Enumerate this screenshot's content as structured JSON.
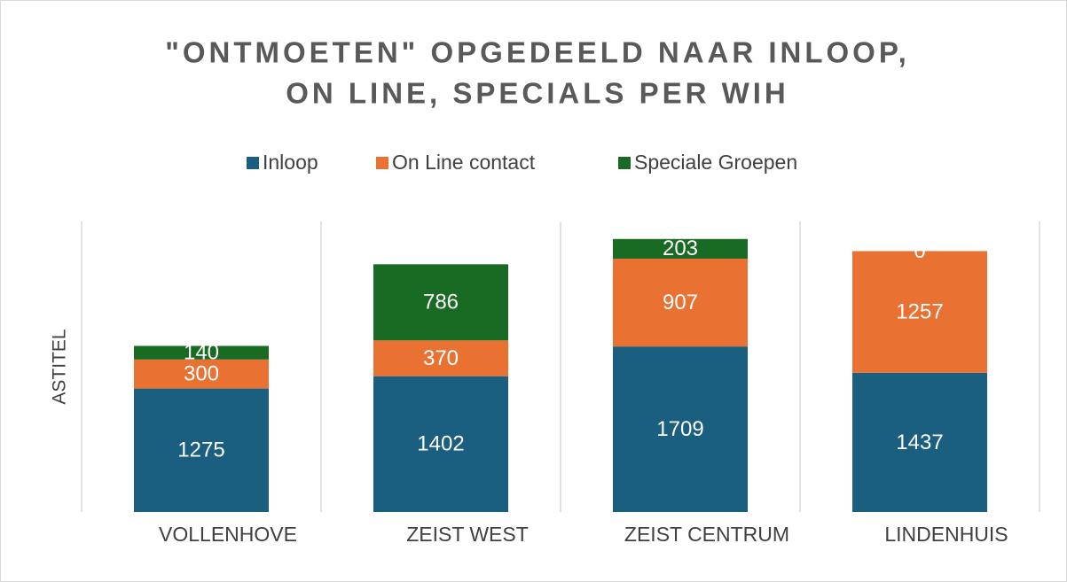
{
  "chart_data": {
    "type": "stacked_bar",
    "title": [
      "\"ONTMOETEN\" OPGEDEELD NAAR INLOOP,",
      "ON LINE, SPECIALS PER WIH"
    ],
    "ylabel": "ASTITEL",
    "categories": [
      "VOLLENHOVE",
      "ZEIST WEST",
      "ZEIST CENTRUM",
      "LINDENHUIS"
    ],
    "series": [
      {
        "name": "Inloop",
        "color": "#1a5e80",
        "values": [
          1275,
          1402,
          1709,
          1437
        ]
      },
      {
        "name": "On Line contact",
        "color": "#e97132",
        "values": [
          300,
          370,
          907,
          1257
        ]
      },
      {
        "name": "Speciale Groepen",
        "color": "#196b24",
        "values": [
          140,
          786,
          203,
          0
        ]
      }
    ],
    "ylim": [
      0,
      3000
    ]
  }
}
